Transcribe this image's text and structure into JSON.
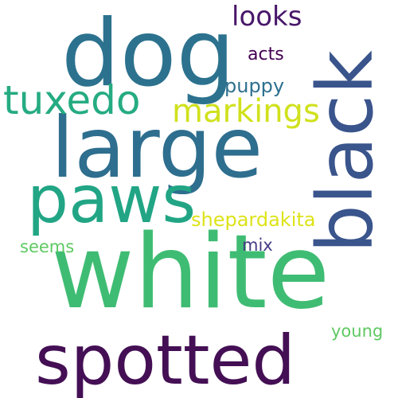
{
  "words": {
    "white": {
      "text": "white",
      "color": "#3fbc73"
    },
    "spotted": {
      "text": "spotted",
      "color": "#440f54"
    },
    "large": {
      "text": "large",
      "color": "#2e6e8e"
    },
    "dog": {
      "text": "dog",
      "color": "#2c728e"
    },
    "black": {
      "text": "black",
      "color": "#3a548c"
    },
    "paws": {
      "text": "paws",
      "color": "#21a585"
    },
    "tuxedo": {
      "text": "tuxedo",
      "color": "#25ab82"
    },
    "markings": {
      "text": "markings",
      "color": "#d0e11c"
    },
    "looks": {
      "text": "looks",
      "color": "#481769"
    },
    "shepardakita": {
      "text": "shepardakita",
      "color": "#dde318"
    },
    "puppy": {
      "text": "puppy",
      "color": "#2d708e"
    },
    "acts": {
      "text": "acts",
      "color": "#440154"
    },
    "seems": {
      "text": "seems",
      "color": "#5ec962"
    },
    "mix": {
      "text": "mix",
      "color": "#443b84"
    },
    "young": {
      "text": "young",
      "color": "#5ec962"
    }
  }
}
